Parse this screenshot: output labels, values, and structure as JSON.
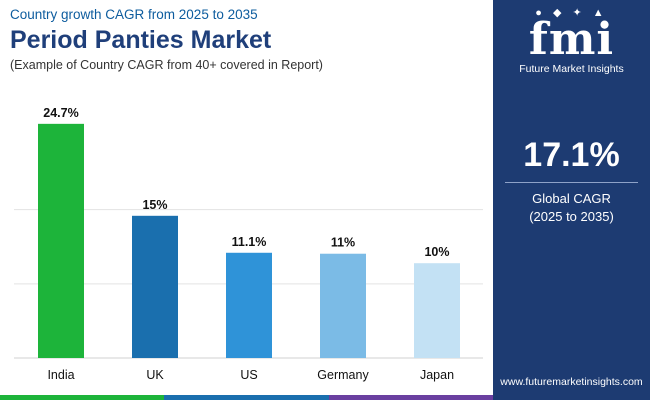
{
  "header": {
    "subtitle_top": "Country growth CAGR from 2025 to 2035",
    "title": "Period Panties Market",
    "subtitle_bottom": "(Example of Country CAGR from 40+ covered in Report)"
  },
  "chart_data": {
    "type": "bar",
    "categories": [
      "India",
      "UK",
      "US",
      "Germany",
      "Japan"
    ],
    "values": [
      24.7,
      15,
      11.1,
      11,
      10
    ],
    "value_labels": [
      "24.7%",
      "15%",
      "11.1%",
      "11%",
      "10%"
    ],
    "bar_colors": [
      "#1db43a",
      "#1a6fae",
      "#2f93d8",
      "#7bbbe6",
      "#c3e1f4"
    ],
    "ylim": [
      0,
      25
    ],
    "grid": true,
    "title": "",
    "xlabel": "",
    "ylabel": ""
  },
  "sidebar": {
    "logo_text": "fmi",
    "logo_sub": "Future Market Insights",
    "cagr_value": "17.1%",
    "cagr_label_line1": "Global CAGR",
    "cagr_label_line2": "(2025 to 2035)",
    "website": "www.futuremarketinsights.com"
  },
  "colors": {
    "sidebar_bg": "#1d3b72",
    "title": "#1f3f7a",
    "bottom_bar": [
      "#1db43a",
      "#1a6fae",
      "#6a3fa0"
    ]
  }
}
